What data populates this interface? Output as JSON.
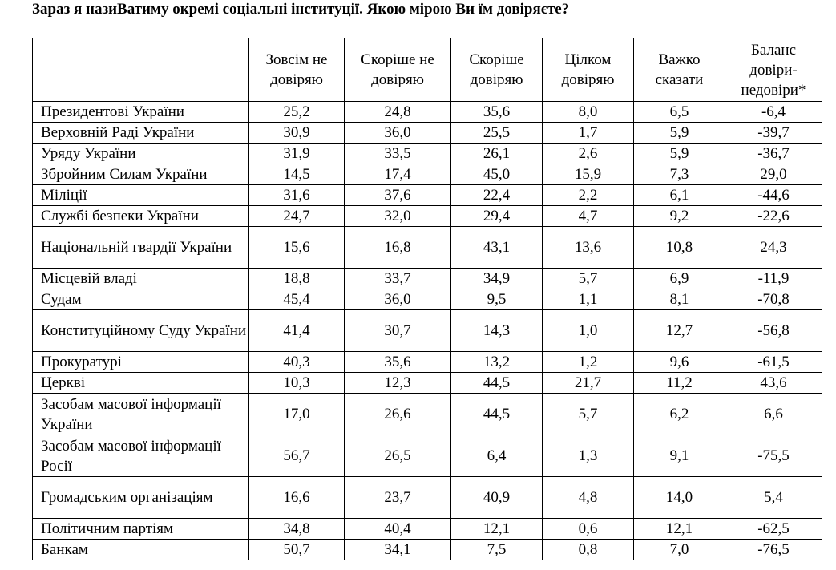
{
  "title": "Зараз я назиВатиму окремі соціальні інституції. Якою мірою Ви їм довіряєте?",
  "columns": [
    "",
    "Зовсім не довіряю",
    "Скоріше не довіряю",
    "Скоріше довіряю",
    "Цілком довіряю",
    "Важко сказати",
    "Баланс довіри-недовіри*"
  ],
  "rows": [
    {
      "label": "Президентові України",
      "values": [
        "25,2",
        "24,8",
        "35,6",
        "8,0",
        "6,5",
        "-6,4"
      ]
    },
    {
      "label": "Верховній Раді України",
      "values": [
        "30,9",
        "36,0",
        "25,5",
        "1,7",
        "5,9",
        "-39,7"
      ]
    },
    {
      "label": "Уряду України",
      "values": [
        "31,9",
        "33,5",
        "26,1",
        "2,6",
        "5,9",
        "-36,7"
      ]
    },
    {
      "label": "Збройним Силам України",
      "values": [
        "14,5",
        "17,4",
        "45,0",
        "15,9",
        "7,3",
        "29,0"
      ]
    },
    {
      "label": "Міліції",
      "values": [
        "31,6",
        "37,6",
        "22,4",
        "2,2",
        "6,1",
        "-44,6"
      ]
    },
    {
      "label": "Службі безпеки України",
      "values": [
        "24,7",
        "32,0",
        "29,4",
        "4,7",
        "9,2",
        "-22,6"
      ]
    },
    {
      "label": "Національній гвардії України",
      "values": [
        "15,6",
        "16,8",
        "43,1",
        "13,6",
        "10,8",
        "24,3"
      ]
    },
    {
      "label": "Місцевій владі",
      "values": [
        "18,8",
        "33,7",
        "34,9",
        "5,7",
        "6,9",
        "-11,9"
      ]
    },
    {
      "label": "Судам",
      "values": [
        "45,4",
        "36,0",
        "9,5",
        "1,1",
        "8,1",
        "-70,8"
      ]
    },
    {
      "label": "Конституційному Суду України",
      "values": [
        "41,4",
        "30,7",
        "14,3",
        "1,0",
        "12,7",
        "-56,8"
      ]
    },
    {
      "label": "Прокуратурі",
      "values": [
        "40,3",
        "35,6",
        "13,2",
        "1,2",
        "9,6",
        "-61,5"
      ]
    },
    {
      "label": "Церкві",
      "values": [
        "10,3",
        "12,3",
        "44,5",
        "21,7",
        "11,2",
        "43,6"
      ]
    },
    {
      "label": "Засобам масової інформації України",
      "values": [
        "17,0",
        "26,6",
        "44,5",
        "5,7",
        "6,2",
        "6,6"
      ]
    },
    {
      "label": "Засобам масової інформації Росії",
      "values": [
        "56,7",
        "26,5",
        "6,4",
        "1,3",
        "9,1",
        "-75,5"
      ]
    },
    {
      "label": "Громадським організаціям",
      "values": [
        "16,6",
        "23,7",
        "40,9",
        "4,8",
        "14,0",
        "5,4"
      ]
    },
    {
      "label": "Політичним партіям",
      "values": [
        "34,8",
        "40,4",
        "12,1",
        "0,6",
        "12,1",
        "-62,5"
      ]
    },
    {
      "label": "Банкам",
      "values": [
        "50,7",
        "34,1",
        "7,5",
        "0,8",
        "7,0",
        "-76,5"
      ]
    }
  ]
}
